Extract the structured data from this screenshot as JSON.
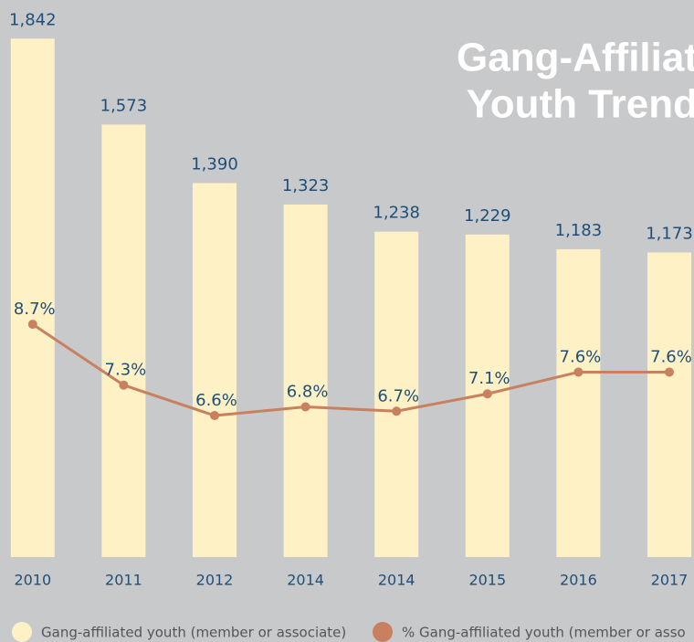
{
  "chart_data": {
    "type": "bar_line",
    "title": [
      "Gang-Affiliat",
      "Youth Trend"
    ],
    "categories": [
      "2010",
      "2011",
      "2012",
      "2014",
      "2014",
      "2015",
      "2016",
      "2017"
    ],
    "series": [
      {
        "name": "Gang-affiliated youth (member or associate)",
        "type": "bar",
        "color": "#fdf1c5",
        "values": [
          1842,
          1573,
          1390,
          1323,
          1238,
          1229,
          1183,
          1173
        ],
        "value_labels": [
          "1,842",
          "1,573",
          "1,390",
          "1,323",
          "1,238",
          "1,229",
          "1,183",
          "1,173"
        ]
      },
      {
        "name": "% Gang-affiliated youth (member or asso",
        "type": "line",
        "axis": "y2",
        "color": "#c8805f",
        "values": [
          8.7,
          7.3,
          6.6,
          6.8,
          6.7,
          7.1,
          7.6,
          7.6
        ],
        "value_labels": [
          "8.7%",
          "7.3%",
          "6.6%",
          "6.8%",
          "6.7%",
          "7.1%",
          "7.6%",
          "7.6%"
        ]
      }
    ],
    "ylim": [
      220,
      2000
    ],
    "y2lim": [
      2,
      12
    ]
  }
}
